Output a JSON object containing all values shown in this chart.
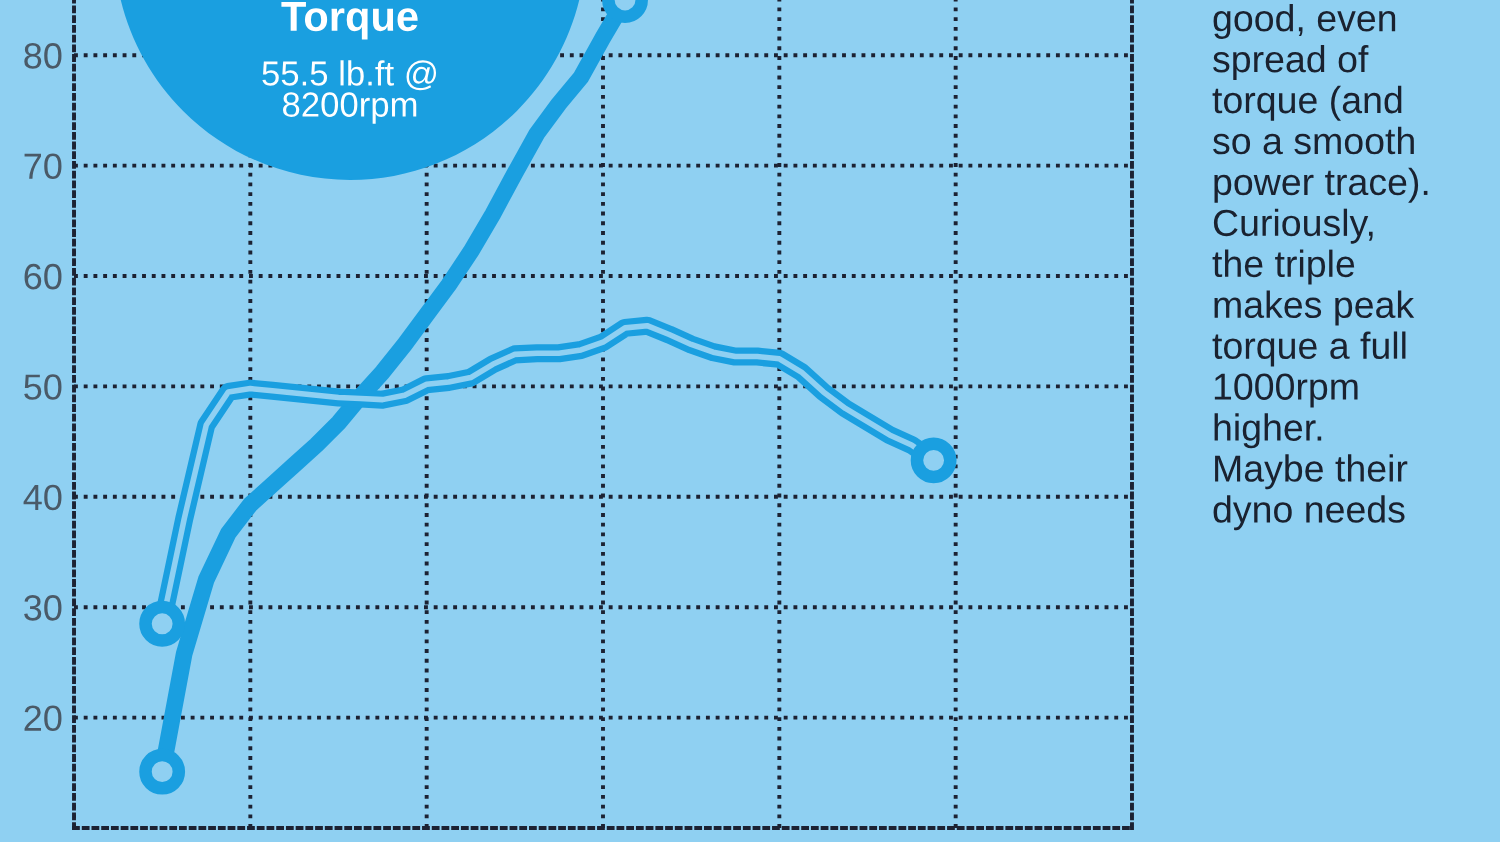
{
  "chart_data": {
    "type": "line",
    "categories": [
      null,
      null,
      null,
      null,
      null,
      null,
      null,
      null,
      null,
      null,
      null,
      null,
      null,
      null,
      null,
      null,
      null,
      null,
      null,
      null,
      null,
      null,
      null,
      null,
      null,
      null,
      null,
      null,
      null,
      null,
      null,
      null,
      null,
      null,
      null,
      null,
      null,
      null,
      null,
      null,
      null,
      null,
      null,
      null,
      null,
      null,
      null,
      null,
      null
    ],
    "series": [
      {
        "color": "#1a9fe0",
        "line_style": "solid",
        "values": [
          null,
          null,
          null,
          null,
          15.1,
          25.8,
          32.5,
          36.7,
          39.3,
          41.1,
          42.9,
          44.7,
          46.7,
          49.1,
          51.3,
          53.8,
          56.5,
          59.2,
          62.2,
          65.6,
          69.3,
          72.9,
          75.6,
          78,
          81.6,
          85,
          null,
          null,
          null,
          null,
          null,
          null,
          null,
          null,
          null,
          null,
          null,
          null,
          null,
          null,
          null,
          null,
          null,
          null,
          null,
          null,
          null,
          null,
          null
        ]
      },
      {
        "color": "#1a9fe0",
        "line_style": "solid",
        "values": [
          null,
          null,
          null,
          null,
          28.5,
          38,
          46.5,
          49.5,
          49.8,
          49.6,
          49.4,
          49.2,
          49,
          48.9,
          48.8,
          49.2,
          50.2,
          50.4,
          50.8,
          52,
          52.9,
          53,
          53,
          53.3,
          54,
          55.3,
          55.5,
          54.7,
          53.8,
          53.1,
          52.7,
          52.7,
          52.5,
          51.3,
          49.5,
          48,
          46.8,
          45.6,
          44.7,
          43.3,
          null,
          null,
          null,
          null,
          null,
          null,
          null,
          null,
          null
        ]
      }
    ],
    "ylim": [
      10,
      85
    ],
    "yticks": [
      20,
      30,
      40,
      50,
      60,
      70,
      80
    ],
    "grid": true,
    "legend": false,
    "annotations": [
      "Torque",
      "55.5 lb.ft @\n8200rpm",
      "good, even\nspread of\ntorque (and\nso a smooth\npower trace).\nCuriously,\nthe triple\nmakes peak\ntorque a full\n1000rpm\nhigher.\nMaybe their\ndyno needs"
    ]
  }
}
